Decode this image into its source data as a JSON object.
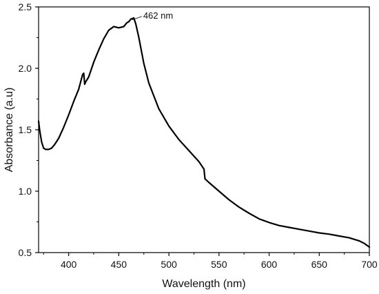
{
  "chart_data": {
    "type": "line",
    "xlabel": "Wavelength (nm)",
    "ylabel": "Absorbance (a.u)",
    "xlim": [
      370,
      700
    ],
    "ylim": [
      0.5,
      2.5
    ],
    "xticks": [
      400,
      450,
      500,
      550,
      600,
      650,
      700
    ],
    "yticks": [
      0.5,
      1.0,
      1.5,
      2.0,
      2.5
    ],
    "x_tick_labels": [
      "400",
      "450",
      "500",
      "550",
      "600",
      "650",
      "700"
    ],
    "y_tick_labels": [
      "0.5",
      "1.0",
      "1.5",
      "2.0",
      "2.5"
    ],
    "grid": false,
    "line_color": "#000000",
    "series": [
      {
        "x": [
          370,
          371,
          373,
          375,
          377,
          380,
          383,
          386,
          390,
          395,
          400,
          405,
          410,
          413,
          414,
          415,
          416,
          417,
          420,
          425,
          430,
          435,
          440,
          445,
          450,
          455,
          458,
          460,
          462,
          465,
          467,
          470,
          475,
          480,
          490,
          500,
          510,
          520,
          530,
          535,
          536,
          540,
          550,
          560,
          570,
          580,
          590,
          600,
          610,
          620,
          630,
          640,
          650,
          660,
          670,
          680,
          690,
          695,
          700
        ],
        "y": [
          1.57,
          1.5,
          1.4,
          1.35,
          1.34,
          1.34,
          1.35,
          1.38,
          1.43,
          1.52,
          1.62,
          1.73,
          1.83,
          1.92,
          1.95,
          1.96,
          1.87,
          1.89,
          1.93,
          2.05,
          2.15,
          2.24,
          2.31,
          2.34,
          2.33,
          2.34,
          2.37,
          2.38,
          2.4,
          2.41,
          2.36,
          2.25,
          2.04,
          1.88,
          1.67,
          1.53,
          1.42,
          1.33,
          1.24,
          1.18,
          1.1,
          1.07,
          1.0,
          0.93,
          0.87,
          0.82,
          0.775,
          0.745,
          0.72,
          0.705,
          0.69,
          0.675,
          0.66,
          0.65,
          0.635,
          0.62,
          0.595,
          0.575,
          0.545
        ]
      }
    ],
    "annotations": [
      {
        "text": "462 nm",
        "x": 462,
        "y": 2.4
      }
    ]
  }
}
